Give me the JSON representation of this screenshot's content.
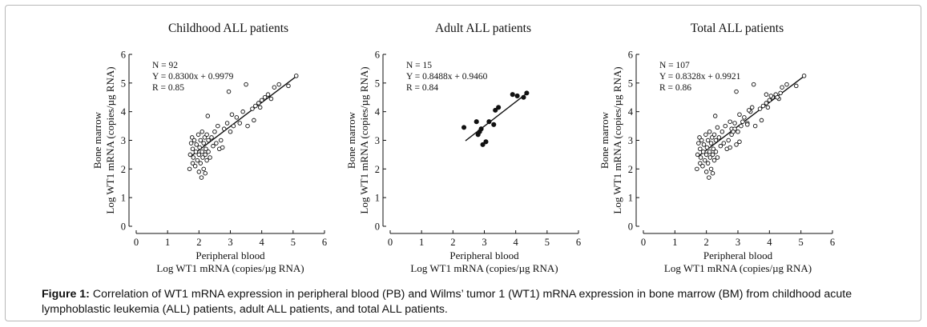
{
  "caption": {
    "label": "Figure 1:",
    "text": "Correlation of WT1 mRNA expression in peripheral blood (PB) and Wilms’ tumor 1 (WT1) mRNA expression in bone marrow (BM) from childhood acute lymphoblastic leukemia (ALL) patients, adult ALL patients, and total ALL patients."
  },
  "chart_data": [
    {
      "type": "scatter",
      "title": "Childhood ALL patients",
      "xlabel": [
        "Peripheral blood",
        "Log WT1 mRNA (copies/µg RNA)"
      ],
      "ylabel": [
        "Bone marrow",
        "Log WT1 mRNA (copies/µg RNA)"
      ],
      "xlim": [
        0,
        6
      ],
      "ylim": [
        0,
        6
      ],
      "xticks": [
        "0",
        "1",
        "2",
        "3",
        "4",
        "5",
        "6"
      ],
      "yticks": [
        "0",
        "1",
        "2",
        "3",
        "4",
        "5",
        "6"
      ],
      "grid": false,
      "annotations": [
        "N = 92",
        "Y = 0.8300x + 0.9979",
        "R = 0.85"
      ],
      "marker": "open-circle",
      "fit_line": {
        "slope": 0.83,
        "intercept": 0.9979,
        "x_range": [
          1.75,
          5.1
        ]
      },
      "points": [
        [
          1.7,
          2.0
        ],
        [
          1.72,
          2.5
        ],
        [
          1.75,
          2.9
        ],
        [
          1.78,
          3.1
        ],
        [
          1.8,
          2.2
        ],
        [
          1.8,
          2.7
        ],
        [
          1.82,
          2.4
        ],
        [
          1.85,
          3.0
        ],
        [
          1.88,
          2.1
        ],
        [
          1.9,
          2.6
        ],
        [
          1.92,
          2.85
        ],
        [
          1.95,
          2.3
        ],
        [
          1.98,
          3.2
        ],
        [
          2.0,
          2.5
        ],
        [
          2.0,
          1.9
        ],
        [
          2.02,
          2.75
        ],
        [
          2.05,
          2.2
        ],
        [
          2.05,
          3.0
        ],
        [
          2.08,
          1.7
        ],
        [
          2.1,
          2.6
        ],
        [
          2.1,
          3.3
        ],
        [
          2.12,
          2.4
        ],
        [
          2.15,
          2.9
        ],
        [
          2.15,
          2.0
        ],
        [
          2.18,
          3.1
        ],
        [
          2.2,
          2.5
        ],
        [
          2.2,
          1.85
        ],
        [
          2.22,
          2.7
        ],
        [
          2.25,
          3.2
        ],
        [
          2.25,
          2.3
        ],
        [
          2.28,
          3.85
        ],
        [
          2.3,
          2.6
        ],
        [
          2.3,
          3.0
        ],
        [
          2.35,
          2.4
        ],
        [
          2.4,
          3.1
        ],
        [
          2.45,
          2.8
        ],
        [
          2.5,
          3.3
        ],
        [
          2.55,
          2.9
        ],
        [
          2.6,
          3.5
        ],
        [
          2.65,
          2.7
        ],
        [
          2.7,
          3.0
        ],
        [
          2.75,
          2.75
        ],
        [
          2.8,
          3.4
        ],
        [
          2.9,
          3.6
        ],
        [
          2.95,
          4.7
        ],
        [
          3.0,
          3.3
        ],
        [
          3.05,
          3.9
        ],
        [
          3.1,
          3.5
        ],
        [
          3.2,
          3.8
        ],
        [
          3.3,
          3.6
        ],
        [
          3.4,
          4.0
        ],
        [
          3.5,
          4.95
        ],
        [
          3.55,
          3.5
        ],
        [
          3.7,
          4.1
        ],
        [
          3.75,
          3.7
        ],
        [
          3.8,
          4.2
        ],
        [
          3.9,
          4.3
        ],
        [
          3.95,
          4.15
        ],
        [
          4.0,
          4.4
        ],
        [
          4.1,
          4.5
        ],
        [
          4.2,
          4.6
        ],
        [
          4.3,
          4.45
        ],
        [
          4.4,
          4.85
        ],
        [
          4.55,
          4.95
        ],
        [
          4.85,
          4.9
        ],
        [
          5.1,
          5.25
        ]
      ]
    },
    {
      "type": "scatter",
      "title": "Adult ALL patients",
      "xlabel": [
        "Peripheral blood",
        "Log WT1 mRNA (copies/µg RNA)"
      ],
      "ylabel": [
        "Bone marrow",
        "Log WT1 mRNA (copies/µg RNA)"
      ],
      "xlim": [
        0,
        6
      ],
      "ylim": [
        0,
        6
      ],
      "xticks": [
        "0",
        "1",
        "2",
        "3",
        "4",
        "5",
        "6"
      ],
      "yticks": [
        "0",
        "1",
        "2",
        "3",
        "4",
        "5",
        "6"
      ],
      "grid": false,
      "annotations": [
        "N = 15",
        "Y = 0.8488x + 0.9460",
        "R = 0.84"
      ],
      "marker": "filled-circle",
      "fit_line": {
        "slope": 0.8488,
        "intercept": 0.946,
        "x_range": [
          2.4,
          4.4
        ]
      },
      "points": [
        [
          2.35,
          3.45
        ],
        [
          2.75,
          3.65
        ],
        [
          2.8,
          3.2
        ],
        [
          2.9,
          3.4
        ],
        [
          2.95,
          2.85
        ],
        [
          3.05,
          2.95
        ],
        [
          3.15,
          3.65
        ],
        [
          3.3,
          3.55
        ],
        [
          3.35,
          4.05
        ],
        [
          3.45,
          4.15
        ],
        [
          3.9,
          4.6
        ],
        [
          4.05,
          4.55
        ],
        [
          4.25,
          4.5
        ],
        [
          4.35,
          4.65
        ],
        [
          2.85,
          3.3
        ]
      ]
    },
    {
      "type": "scatter",
      "title": "Total ALL patients",
      "xlabel": [
        "Peripheral blood",
        "Log WT1 mRNA (copies/µg RNA)"
      ],
      "ylabel": [
        "Bone marrow",
        "Log WT1 mRNA (copies/µg RNA)"
      ],
      "xlim": [
        0,
        6
      ],
      "ylim": [
        0,
        6
      ],
      "xticks": [
        "0",
        "1",
        "2",
        "3",
        "4",
        "5",
        "6"
      ],
      "yticks": [
        "0",
        "1",
        "2",
        "3",
        "4",
        "5",
        "6"
      ],
      "grid": false,
      "annotations": [
        "N = 107",
        "Y = 0.8328x + 0.9921",
        "R = 0.86"
      ],
      "marker": "open-circle",
      "fit_line": {
        "slope": 0.8328,
        "intercept": 0.9921,
        "x_range": [
          1.75,
          5.1
        ]
      },
      "points": [
        [
          1.7,
          2.0
        ],
        [
          1.72,
          2.5
        ],
        [
          1.75,
          2.9
        ],
        [
          1.78,
          3.1
        ],
        [
          1.8,
          2.2
        ],
        [
          1.8,
          2.7
        ],
        [
          1.82,
          2.4
        ],
        [
          1.85,
          3.0
        ],
        [
          1.88,
          2.1
        ],
        [
          1.9,
          2.6
        ],
        [
          1.92,
          2.85
        ],
        [
          1.95,
          2.3
        ],
        [
          1.98,
          3.2
        ],
        [
          2.0,
          2.5
        ],
        [
          2.0,
          1.9
        ],
        [
          2.02,
          2.75
        ],
        [
          2.05,
          2.2
        ],
        [
          2.05,
          3.0
        ],
        [
          2.08,
          1.7
        ],
        [
          2.1,
          2.6
        ],
        [
          2.1,
          3.3
        ],
        [
          2.12,
          2.4
        ],
        [
          2.15,
          2.9
        ],
        [
          2.15,
          2.0
        ],
        [
          2.18,
          3.1
        ],
        [
          2.2,
          2.5
        ],
        [
          2.2,
          1.85
        ],
        [
          2.22,
          2.7
        ],
        [
          2.25,
          3.2
        ],
        [
          2.25,
          2.3
        ],
        [
          2.28,
          3.85
        ],
        [
          2.3,
          2.6
        ],
        [
          2.3,
          3.0
        ],
        [
          2.35,
          2.4
        ],
        [
          2.4,
          3.1
        ],
        [
          2.45,
          2.8
        ],
        [
          2.5,
          3.3
        ],
        [
          2.55,
          2.9
        ],
        [
          2.6,
          3.5
        ],
        [
          2.65,
          2.7
        ],
        [
          2.7,
          3.0
        ],
        [
          2.75,
          2.75
        ],
        [
          2.8,
          3.4
        ],
        [
          2.9,
          3.6
        ],
        [
          2.95,
          4.7
        ],
        [
          3.0,
          3.3
        ],
        [
          3.05,
          3.9
        ],
        [
          3.1,
          3.5
        ],
        [
          3.2,
          3.8
        ],
        [
          3.3,
          3.6
        ],
        [
          3.4,
          4.0
        ],
        [
          3.5,
          4.95
        ],
        [
          3.55,
          3.5
        ],
        [
          3.7,
          4.1
        ],
        [
          3.75,
          3.7
        ],
        [
          3.8,
          4.2
        ],
        [
          3.9,
          4.3
        ],
        [
          3.95,
          4.15
        ],
        [
          4.0,
          4.4
        ],
        [
          4.1,
          4.5
        ],
        [
          4.2,
          4.6
        ],
        [
          4.3,
          4.45
        ],
        [
          4.4,
          4.85
        ],
        [
          4.55,
          4.95
        ],
        [
          4.85,
          4.9
        ],
        [
          5.1,
          5.25
        ],
        [
          2.35,
          3.45
        ],
        [
          2.75,
          3.65
        ],
        [
          2.8,
          3.2
        ],
        [
          2.9,
          3.4
        ],
        [
          2.95,
          2.85
        ],
        [
          3.05,
          2.95
        ],
        [
          3.15,
          3.65
        ],
        [
          3.3,
          3.55
        ],
        [
          3.35,
          4.05
        ],
        [
          3.45,
          4.15
        ],
        [
          3.9,
          4.6
        ],
        [
          4.05,
          4.55
        ],
        [
          4.25,
          4.5
        ],
        [
          4.35,
          4.65
        ],
        [
          2.85,
          3.3
        ]
      ]
    }
  ]
}
